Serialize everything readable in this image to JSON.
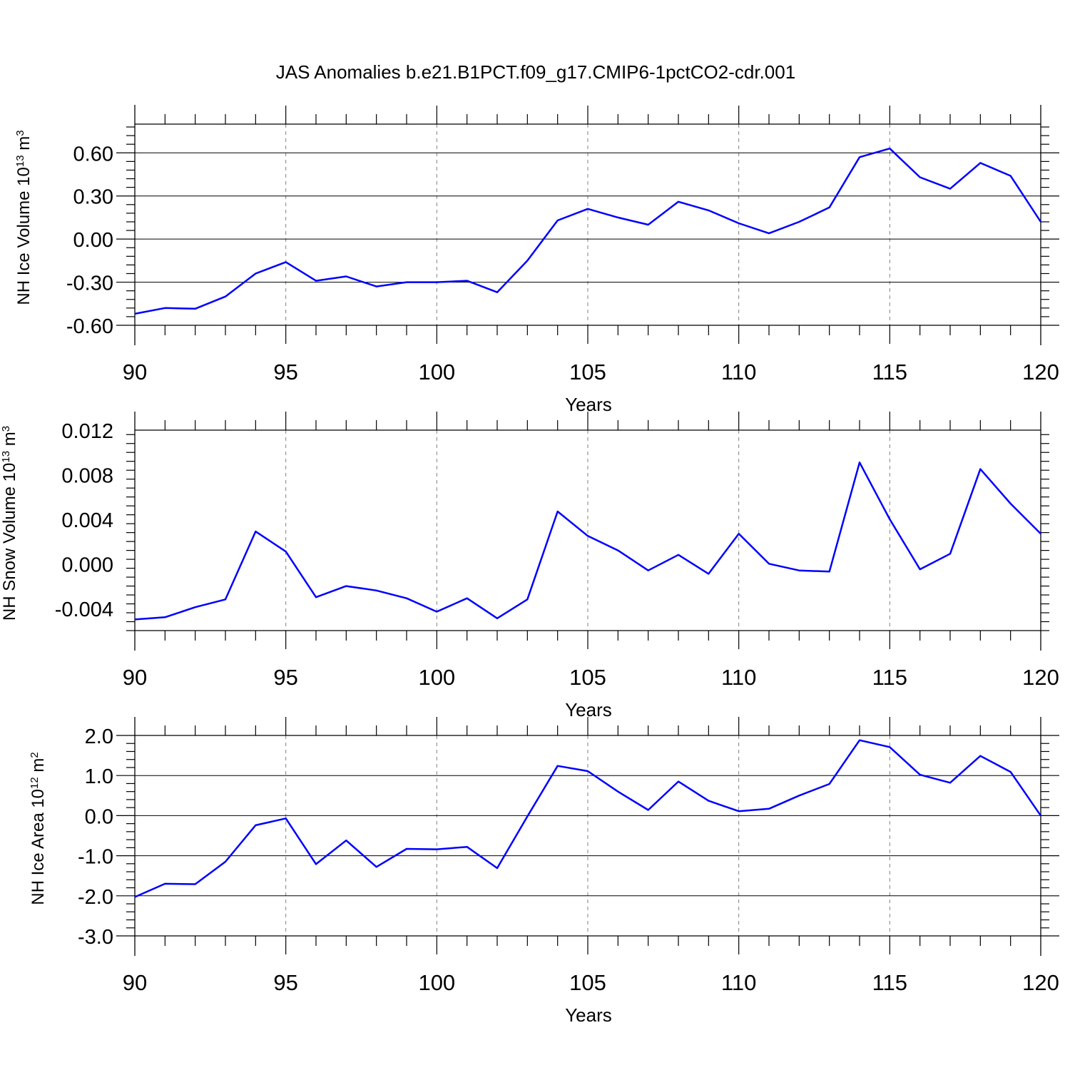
{
  "title": "JAS Anomalies b.e21.B1PCT.f09_g17.CMIP6-1pctCO2-cdr.001",
  "colors": {
    "line": "#0000ff",
    "axis": "#000000",
    "grid": "#808080"
  },
  "chart_data": [
    {
      "type": "line",
      "ylabel": {
        "main": "NH Ice Volume 10",
        "exp": "13",
        "unit": " m",
        "unit_exp": "3"
      },
      "xlabel": "Years",
      "xlim": [
        90,
        120
      ],
      "ylim": [
        -0.6,
        0.8
      ],
      "xticks": [
        "90",
        "95",
        "100",
        "105",
        "110",
        "115",
        "120"
      ],
      "yticks": [
        "-0.60",
        "-0.30",
        "0.00",
        "0.30",
        "0.60"
      ],
      "ytick_values": [
        -0.6,
        -0.3,
        0.0,
        0.3,
        0.6
      ],
      "x": [
        90,
        91,
        92,
        93,
        94,
        95,
        96,
        97,
        98,
        99,
        100,
        101,
        102,
        103,
        104,
        105,
        106,
        107,
        108,
        109,
        110,
        111,
        112,
        113,
        114,
        115,
        116,
        117,
        118,
        119,
        120
      ],
      "values": [
        -0.52,
        -0.48,
        -0.485,
        -0.4,
        -0.24,
        -0.16,
        -0.29,
        -0.26,
        -0.33,
        -0.3,
        -0.3,
        -0.29,
        -0.37,
        -0.15,
        0.13,
        0.21,
        0.15,
        0.1,
        0.26,
        0.2,
        0.11,
        0.04,
        0.12,
        0.22,
        0.57,
        0.63,
        0.43,
        0.35,
        0.53,
        0.44,
        0.12
      ]
    },
    {
      "type": "line",
      "ylabel": {
        "main": "NH Snow Volume 10",
        "exp": "13",
        "unit": " m",
        "unit_exp": "3"
      },
      "xlabel": "Years",
      "xlim": [
        90,
        120
      ],
      "ylim": [
        -0.006,
        0.012
      ],
      "xticks": [
        "90",
        "95",
        "100",
        "105",
        "110",
        "115",
        "120"
      ],
      "yticks": [
        "-0.004",
        "0.000",
        "0.004",
        "0.008",
        "0.012"
      ],
      "ytick_values": [
        -0.004,
        0.0,
        0.004,
        0.008,
        0.012
      ],
      "x": [
        90,
        91,
        92,
        93,
        94,
        95,
        96,
        97,
        98,
        99,
        100,
        101,
        102,
        103,
        104,
        105,
        106,
        107,
        108,
        109,
        110,
        111,
        112,
        113,
        114,
        115,
        116,
        117,
        118,
        119,
        120
      ],
      "values": [
        -0.005,
        -0.0048,
        -0.0039,
        -0.0032,
        0.0029,
        0.0011,
        -0.003,
        -0.002,
        -0.0024,
        -0.0031,
        -0.0043,
        -0.0031,
        -0.0049,
        -0.0032,
        0.0047,
        0.0025,
        0.0012,
        -0.0006,
        0.0008,
        -0.0009,
        0.0027,
        0.0,
        -0.0006,
        -0.0007,
        0.0091,
        0.004,
        -0.0005,
        0.0009,
        0.0085,
        0.0054,
        0.0027
      ]
    },
    {
      "type": "line",
      "ylabel": {
        "main": "NH Ice Area 10",
        "exp": "12",
        "unit": " m",
        "unit_exp": "2"
      },
      "xlabel": "Years",
      "xlim": [
        90,
        120
      ],
      "ylim": [
        -3.0,
        2.0
      ],
      "xticks": [
        "90",
        "95",
        "100",
        "105",
        "110",
        "115",
        "120"
      ],
      "yticks": [
        "-3.0",
        "-2.0",
        "-1.0",
        "0.0",
        "1.0",
        "2.0"
      ],
      "ytick_values": [
        -3.0,
        -2.0,
        -1.0,
        0.0,
        1.0,
        2.0
      ],
      "x": [
        90,
        91,
        92,
        93,
        94,
        95,
        96,
        97,
        98,
        99,
        100,
        101,
        102,
        103,
        104,
        105,
        106,
        107,
        108,
        109,
        110,
        111,
        112,
        113,
        114,
        115,
        116,
        117,
        118,
        119,
        120
      ],
      "values": [
        -2.03,
        -1.7,
        -1.71,
        -1.15,
        -0.24,
        -0.07,
        -1.21,
        -0.62,
        -1.28,
        -0.83,
        -0.84,
        -0.78,
        -1.31,
        -0.02,
        1.24,
        1.11,
        0.6,
        0.14,
        0.85,
        0.37,
        0.11,
        0.17,
        0.5,
        0.79,
        1.88,
        1.71,
        1.02,
        0.82,
        1.49,
        1.09,
        0.0
      ]
    }
  ]
}
